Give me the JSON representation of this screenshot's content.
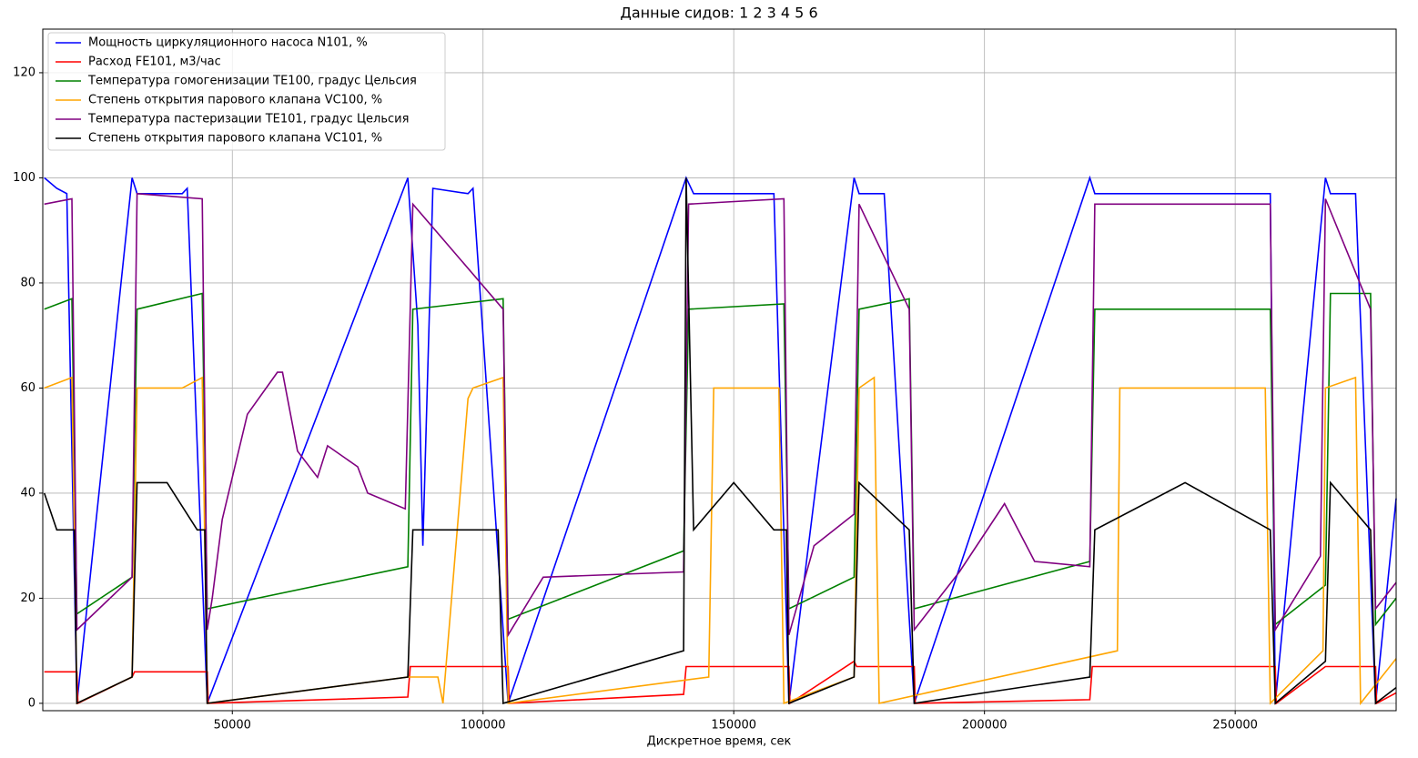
{
  "chart_data": {
    "type": "line",
    "title": "Данные сидов: 1 2 3 4 5 6",
    "x_label": "Дискретное время, сек",
    "xlim": [
      12200,
      282100
    ],
    "ylim": [
      -1.4,
      128.3
    ],
    "xticks": [
      50000,
      100000,
      150000,
      200000,
      250000
    ],
    "yticks": [
      0,
      20,
      40,
      60,
      80,
      100,
      120
    ],
    "grid": true,
    "legend": "upper left",
    "series": [
      {
        "name": "Мощность циркуляционного насоса N101, %",
        "color": "#0000ff",
        "x": [
          12500,
          15000,
          17000,
          19000,
          30000,
          31000,
          40000,
          41000,
          45000,
          85000,
          87000,
          88000,
          90000,
          97000,
          98000,
          105000,
          140500,
          142000,
          158000,
          161000,
          174000,
          175000,
          180000,
          186000,
          221000,
          222000,
          257000,
          258000,
          268000,
          269000,
          274000,
          278000,
          282100
        ],
        "values": [
          100,
          98,
          97,
          0,
          100,
          97,
          97,
          98,
          0,
          100,
          72,
          30,
          98,
          97,
          98,
          0,
          100,
          97,
          97,
          0,
          100,
          97,
          97,
          0,
          100,
          97,
          97,
          0,
          100,
          97,
          97,
          0,
          39
        ]
      },
      {
        "name": "Расход FE101, м3/час",
        "color": "#ff0000",
        "x": [
          12500,
          19000,
          19200,
          30000,
          30500,
          45000,
          45200,
          85000,
          85500,
          105000,
          105200,
          140000,
          140500,
          161000,
          161200,
          174000,
          174500,
          186000,
          186200,
          221000,
          221500,
          258000,
          258200,
          268000,
          268500,
          278000,
          278200,
          282100
        ],
        "values": [
          6,
          6,
          0,
          5,
          6,
          6,
          0,
          1.2,
          7,
          7,
          0,
          1.7,
          7,
          7,
          0,
          8,
          7,
          7,
          0,
          0.7,
          7,
          7,
          0,
          7,
          7,
          7,
          0,
          2
        ]
      },
      {
        "name": "Температура гомогенизации TE100, градус Цельсия",
        "color": "#008000",
        "x": [
          12500,
          18000,
          19000,
          30000,
          31000,
          44000,
          45000,
          85000,
          86000,
          104000,
          105000,
          140000,
          141000,
          160000,
          161000,
          174000,
          175000,
          185000,
          186000,
          221000,
          222000,
          257000,
          258000,
          268000,
          269000,
          277000,
          278000,
          282100
        ],
        "values": [
          75,
          77,
          17,
          24,
          75,
          78,
          18,
          26,
          75,
          77,
          16,
          29,
          75,
          76,
          18,
          24,
          75,
          77,
          18,
          27,
          75,
          75,
          15,
          22.5,
          78,
          78,
          15,
          20
        ]
      },
      {
        "name": "Степень открытия парового клапана VC100, %",
        "color": "#ffa500",
        "x": [
          12500,
          18000,
          19000,
          30000,
          31000,
          40000,
          44000,
          45000,
          85000,
          91000,
          92000,
          97000,
          98000,
          104000,
          105000,
          145000,
          146000,
          159000,
          160000,
          174000,
          175000,
          178000,
          179000,
          226500,
          227000,
          256000,
          257000,
          267500,
          268000,
          274000,
          275000,
          282100
        ],
        "values": [
          60,
          62,
          0,
          5,
          60,
          60,
          62,
          0,
          5,
          5,
          0,
          58,
          60,
          62,
          0,
          5,
          60,
          60,
          0,
          5,
          60,
          62,
          0,
          10,
          60,
          60,
          0,
          10,
          60,
          62,
          0,
          8.5
        ]
      },
      {
        "name": "Температура пастеризации TE101, градус Цельсия",
        "color": "#800080",
        "x": [
          12500,
          18000,
          19000,
          30000,
          31000,
          44000,
          45000,
          46000,
          48000,
          53000,
          59000,
          60000,
          63000,
          67000,
          69000,
          75000,
          77000,
          84500,
          86000,
          104000,
          105000,
          112000,
          140000,
          141000,
          160000,
          161000,
          166000,
          174000,
          175000,
          185000,
          186000,
          195000,
          204000,
          210000,
          221000,
          222000,
          257000,
          258000,
          267000,
          268000,
          277000,
          278000,
          282100
        ],
        "values": [
          95,
          96,
          14,
          24,
          97,
          96,
          14,
          20,
          35,
          55,
          63,
          63,
          48,
          43,
          49,
          45,
          40,
          37,
          95,
          75,
          13,
          24,
          25,
          95,
          96,
          13,
          30,
          36,
          95,
          75,
          14,
          25,
          38,
          27,
          26,
          95,
          95,
          14,
          28,
          96,
          75,
          18,
          23
        ]
      },
      {
        "name": "Степень открытия парового клапана VC101, %",
        "color": "#000000",
        "x": [
          12500,
          15000,
          18500,
          19000,
          30000,
          31000,
          37000,
          43000,
          44500,
          45000,
          85000,
          86000,
          95000,
          103000,
          104000,
          140000,
          140500,
          142000,
          150000,
          158000,
          160500,
          161000,
          174000,
          175000,
          185000,
          186000,
          221000,
          222000,
          240000,
          257000,
          258000,
          268000,
          269000,
          277000,
          278000,
          282100
        ],
        "values": [
          40,
          33,
          33,
          0,
          5,
          42,
          42,
          33,
          33,
          0,
          5,
          33,
          33,
          33,
          0,
          10,
          100,
          33,
          42,
          33,
          33,
          0,
          5,
          42,
          33,
          0,
          5,
          33,
          42,
          33,
          0,
          8,
          42,
          33,
          0,
          3
        ]
      }
    ]
  }
}
